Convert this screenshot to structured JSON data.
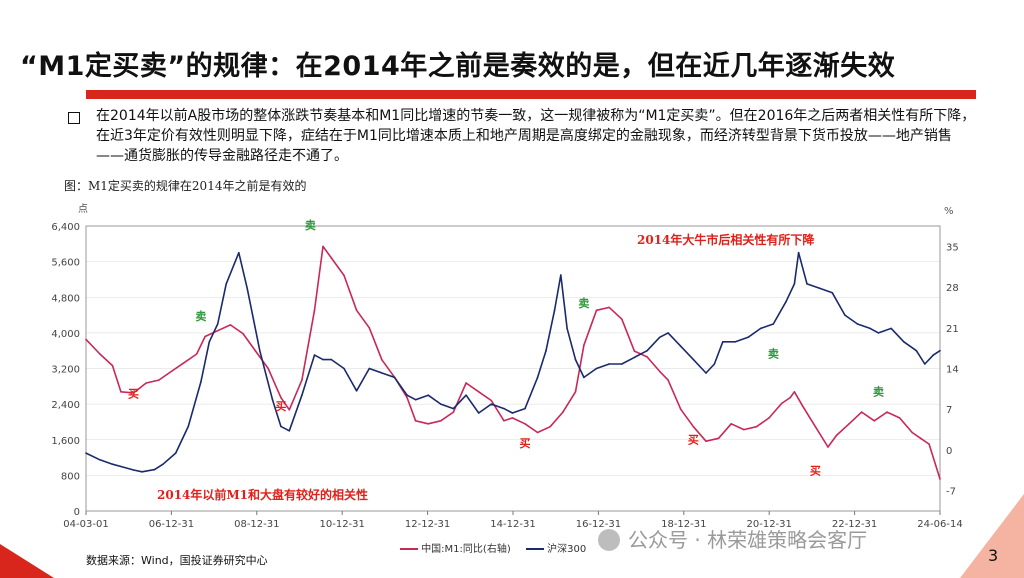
{
  "title": "“M1定买卖”的规律：在2014年之前是奏效的是，但在近几年逐渐失效",
  "body": "在2014年以前A股市场的整体涨跌节奏基本和M1同比增速的节奏一致，这一规律被称为“M1定买卖”。但在2016年之后两者相关性有所下降，在近3年定价有效性则明显下降，症结在于M1同比增速本质上和地产周期是高度绑定的金融现象，而经济转型背景下货币投放——地产销售——通货膨胀的传导金融路径走不通了。",
  "figure_caption": "图：M1定买卖的规律在2014年之前是有效的",
  "source": "数据来源：Wind，国投证券研究中心",
  "watermark": "公众号 · 林荣雄策略会客厅",
  "page_number": "3",
  "colors": {
    "accent": "#d9261c",
    "m1_line": "#c8285a",
    "index_line": "#1a2a6c",
    "annotation_red": "#e0201a",
    "annotation_green": "#2e9a3c"
  },
  "chart_data": {
    "type": "line",
    "left_unit": "点",
    "right_unit": "%",
    "x_ticks": [
      "04-03-01",
      "06-12-31",
      "08-12-31",
      "10-12-31",
      "12-12-31",
      "14-12-31",
      "16-12-31",
      "18-12-31",
      "20-12-31",
      "22-12-31",
      "24-06-14"
    ],
    "left_ticks": [
      "0",
      "800",
      "1,600",
      "2,400",
      "3,200",
      "4,000",
      "4,800",
      "5,600",
      "6,400"
    ],
    "right_ticks": [
      "-7",
      "0",
      "7",
      "14",
      "21",
      "28",
      "35"
    ],
    "ylim_left": [
      0,
      6400
    ],
    "ylim_right": [
      -10.5,
      38.5
    ],
    "xlim": [
      2004.17,
      2024.46
    ],
    "legend": [
      "中国:M1:同比(右轴)",
      "沪深300"
    ],
    "legend_position": "bottom",
    "annotations": [
      {
        "text": "2014年大牛市后相关性有所下降",
        "color": "red"
      },
      {
        "text": "2014年以前M1和大盘有较好的相关性",
        "color": "red"
      }
    ],
    "signal_labels": [
      {
        "text": "卖",
        "color": "green",
        "x": 2006.9,
        "y": 22.3
      },
      {
        "text": "卖",
        "color": "green",
        "x": 2009.5,
        "y": 38.0
      },
      {
        "text": "卖",
        "color": "green",
        "x": 2016.0,
        "y": 24.6
      },
      {
        "text": "卖",
        "color": "green",
        "x": 2020.5,
        "y": 15.9
      },
      {
        "text": "卖",
        "color": "green",
        "x": 2023.0,
        "y": 9.4
      },
      {
        "text": "买",
        "color": "red",
        "x": 2005.3,
        "y": 9.0
      },
      {
        "text": "买",
        "color": "red",
        "x": 2008.8,
        "y": 6.9
      },
      {
        "text": "买",
        "color": "red",
        "x": 2014.6,
        "y": 0.5
      },
      {
        "text": "买",
        "color": "red",
        "x": 2018.6,
        "y": 1.1
      },
      {
        "text": "买",
        "color": "red",
        "x": 2021.5,
        "y": -4.2
      }
    ],
    "series": [
      {
        "name": "中国:M1:同比(右轴)",
        "axis": "right",
        "x": [
          2004.17,
          2004.5,
          2004.8,
          2005.0,
          2005.3,
          2005.6,
          2005.9,
          2006.2,
          2006.5,
          2006.8,
          2007.0,
          2007.3,
          2007.6,
          2007.9,
          2008.2,
          2008.5,
          2008.8,
          2009.0,
          2009.3,
          2009.6,
          2009.8,
          2010.0,
          2010.3,
          2010.6,
          2010.9,
          2011.2,
          2011.5,
          2011.8,
          2012.0,
          2012.3,
          2012.6,
          2012.9,
          2013.2,
          2013.5,
          2013.8,
          2014.1,
          2014.3,
          2014.6,
          2014.9,
          2015.2,
          2015.5,
          2015.8,
          2016.0,
          2016.3,
          2016.6,
          2016.9,
          2017.2,
          2017.5,
          2017.8,
          2018.0,
          2018.3,
          2018.6,
          2018.9,
          2019.2,
          2019.5,
          2019.8,
          2020.1,
          2020.4,
          2020.7,
          2020.9,
          2021.0,
          2021.2,
          2021.5,
          2021.8,
          2022.0,
          2022.3,
          2022.6,
          2022.9,
          2023.2,
          2023.5,
          2023.8,
          2024.0,
          2024.2,
          2024.46
        ],
        "y": [
          19.0,
          16.5,
          14.5,
          10.0,
          9.8,
          11.5,
          12.0,
          13.5,
          15.0,
          16.5,
          19.5,
          20.5,
          21.5,
          20.0,
          17.0,
          14.0,
          9.0,
          6.9,
          12.0,
          24.0,
          35.0,
          33.0,
          30.0,
          24.0,
          21.0,
          15.5,
          12.5,
          9.0,
          5.0,
          4.5,
          5.0,
          6.5,
          11.5,
          10.0,
          8.5,
          5.0,
          5.5,
          4.5,
          3.0,
          4.0,
          6.5,
          10.0,
          18.0,
          24.0,
          24.5,
          22.5,
          17.0,
          16.0,
          13.5,
          12.0,
          7.0,
          4.0,
          1.5,
          2.0,
          4.5,
          3.5,
          4.0,
          5.5,
          8.0,
          9.0,
          10.0,
          7.5,
          4.0,
          0.5,
          2.5,
          4.5,
          6.5,
          5.0,
          6.5,
          5.5,
          3.0,
          2.0,
          1.0,
          -5.0
        ]
      },
      {
        "name": "沪深300",
        "axis": "left",
        "x": [
          2004.17,
          2004.5,
          2004.8,
          2005.0,
          2005.3,
          2005.5,
          2005.8,
          2006.0,
          2006.3,
          2006.6,
          2006.9,
          2007.1,
          2007.3,
          2007.5,
          2007.8,
          2008.0,
          2008.3,
          2008.6,
          2008.8,
          2009.0,
          2009.3,
          2009.6,
          2009.8,
          2010.0,
          2010.3,
          2010.6,
          2010.9,
          2011.2,
          2011.5,
          2011.8,
          2012.0,
          2012.3,
          2012.6,
          2012.9,
          2013.2,
          2013.5,
          2013.8,
          2014.1,
          2014.3,
          2014.6,
          2014.9,
          2015.1,
          2015.3,
          2015.45,
          2015.6,
          2015.8,
          2016.0,
          2016.3,
          2016.6,
          2016.9,
          2017.2,
          2017.5,
          2017.8,
          2018.0,
          2018.3,
          2018.6,
          2018.9,
          2019.1,
          2019.3,
          2019.6,
          2019.9,
          2020.2,
          2020.5,
          2020.8,
          2021.0,
          2021.1,
          2021.3,
          2021.6,
          2021.9,
          2022.2,
          2022.5,
          2022.8,
          2023.0,
          2023.3,
          2023.6,
          2023.9,
          2024.1,
          2024.3,
          2024.46
        ],
        "y": [
          1300,
          1150,
          1050,
          1000,
          920,
          880,
          930,
          1050,
          1300,
          1900,
          2900,
          3800,
          4200,
          5100,
          5800,
          5000,
          3600,
          2500,
          1900,
          1800,
          2600,
          3500,
          3400,
          3400,
          3200,
          2700,
          3200,
          3100,
          3000,
          2600,
          2500,
          2600,
          2400,
          2300,
          2600,
          2200,
          2400,
          2300,
          2200,
          2300,
          3000,
          3600,
          4500,
          5300,
          4100,
          3400,
          3000,
          3200,
          3300,
          3300,
          3450,
          3600,
          3900,
          4000,
          3700,
          3400,
          3100,
          3300,
          3800,
          3800,
          3900,
          4100,
          4200,
          4700,
          5100,
          5800,
          5100,
          5000,
          4900,
          4400,
          4200,
          4100,
          4000,
          4100,
          3800,
          3600,
          3300,
          3500,
          3600
        ]
      }
    ]
  }
}
